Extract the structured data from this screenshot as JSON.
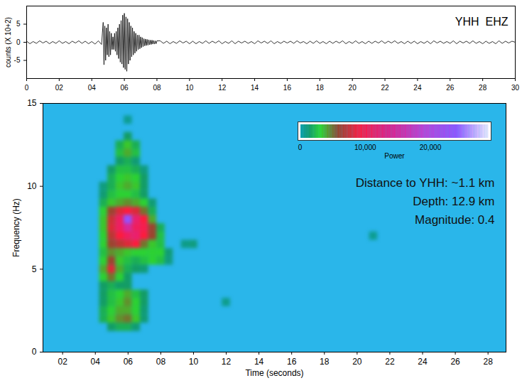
{
  "chart_data": [
    {
      "type": "line",
      "ylabel": "counts (X 10+2)",
      "annotation": "YHH  EHZ",
      "color": "#000000",
      "xlim": [
        0,
        30
      ],
      "xticks": [
        0,
        {
          "value": 2,
          "label": "02"
        },
        {
          "value": 4,
          "label": "04"
        },
        {
          "value": 6,
          "label": "06"
        },
        {
          "value": 8,
          "label": "08"
        },
        10,
        12,
        14,
        16,
        18,
        20,
        22,
        24,
        26,
        28,
        30
      ],
      "ylim": [
        -10,
        10
      ],
      "yticks": [
        -5,
        0,
        5
      ],
      "x": [
        0,
        0.2,
        0.4,
        0.6,
        0.8,
        1,
        1.2,
        1.4,
        1.6,
        1.8,
        2,
        2.2,
        2.4,
        2.6,
        2.8,
        3,
        3.2,
        3.4,
        3.6,
        3.8,
        4,
        4.2,
        4.4,
        4.6,
        4.65,
        4.7,
        4.75,
        4.8,
        4.85,
        4.9,
        4.95,
        5,
        5.05,
        5.1,
        5.15,
        5.2,
        5.25,
        5.3,
        5.35,
        5.4,
        5.45,
        5.5,
        5.55,
        5.6,
        5.65,
        5.7,
        5.75,
        5.8,
        5.85,
        5.9,
        5.95,
        6,
        6.05,
        6.1,
        6.15,
        6.2,
        6.25,
        6.3,
        6.35,
        6.4,
        6.45,
        6.5,
        6.55,
        6.6,
        6.65,
        6.7,
        6.75,
        6.8,
        6.85,
        6.9,
        6.95,
        7,
        7.05,
        7.1,
        7.15,
        7.2,
        7.25,
        7.3,
        7.35,
        7.4,
        7.45,
        7.5,
        7.55,
        7.6,
        7.65,
        7.7,
        7.75,
        7.8,
        7.85,
        7.9,
        7.95,
        8,
        8.2,
        8.4,
        8.6,
        8.8,
        9,
        9.2,
        9.4,
        9.6,
        9.8,
        10,
        10.2,
        10.4,
        10.6,
        10.8,
        11,
        11.2,
        11.4,
        11.6,
        11.8,
        12,
        12.2,
        12.4,
        12.6,
        12.8,
        13,
        13.2,
        13.4,
        13.6,
        13.8,
        14,
        14.2,
        14.4,
        14.6,
        14.8,
        15,
        15.2,
        15.4,
        15.6,
        15.8,
        16,
        16.2,
        16.4,
        16.6,
        16.8,
        17,
        17.2,
        17.4,
        17.6,
        17.8,
        18,
        18.2,
        18.4,
        18.6,
        18.8,
        19,
        19.2,
        19.4,
        19.6,
        19.8,
        20,
        20.2,
        20.4,
        20.6,
        20.8,
        21,
        21.2,
        21.4,
        21.6,
        21.8,
        22,
        22.2,
        22.4,
        22.6,
        22.8,
        23,
        23.2,
        23.4,
        23.6,
        23.8,
        24,
        24.2,
        24.4,
        24.6,
        24.8,
        25,
        25.2,
        25.4,
        25.6,
        25.8,
        26,
        26.2,
        26.4,
        26.6,
        26.8,
        27,
        27.2,
        27.4,
        27.6,
        27.8,
        28,
        28.2,
        28.4,
        28.6,
        28.8,
        29,
        29.2,
        29.4,
        29.6,
        29.8,
        30
      ],
      "values": [
        0.3,
        -0.4,
        0.2,
        -0.3,
        0.4,
        -0.2,
        0.3,
        -0.4,
        0.2,
        -0.3,
        0.4,
        -0.3,
        0.2,
        -0.4,
        0.3,
        -0.2,
        0.4,
        -0.3,
        0.3,
        -0.4,
        0.2,
        -0.5,
        0.4,
        -0.6,
        2.5,
        5.5,
        -6.2,
        4.5,
        -5,
        4,
        -3.5,
        5,
        -4,
        3,
        -3.5,
        2.5,
        -2,
        1.5,
        -2,
        2.5,
        -2.5,
        3,
        -3.5,
        4,
        -4.5,
        5,
        -5.5,
        6,
        -6,
        7.5,
        -7,
        8,
        -7.5,
        7,
        -8,
        6.5,
        -6,
        5.5,
        -5,
        4.5,
        -4,
        4,
        -3.5,
        3,
        -3,
        2.5,
        -2.5,
        2,
        -2,
        2,
        -1.8,
        1.5,
        -1.5,
        1.3,
        -1.2,
        1,
        -1,
        0.9,
        -0.9,
        0.8,
        -0.8,
        0.7,
        -0.7,
        0.6,
        -0.6,
        0.6,
        -0.5,
        0.5,
        -0.5,
        0.4,
        -0.4,
        0.4,
        0.4,
        -0.3,
        0.3,
        -0.4,
        0.2,
        -0.3,
        0.4,
        -0.2,
        0.3,
        -0.4,
        0.3,
        -0.4,
        0.2,
        -0.3,
        0.4,
        -0.3,
        0.3,
        -0.2,
        0.4,
        -0.4,
        0.2,
        -0.3,
        0.4,
        -0.4,
        0.3,
        -0.2,
        0.3,
        -0.3,
        0.2,
        -0.4,
        0.4,
        -0.2,
        0.3,
        -0.3,
        0.4,
        -0.4,
        0.2,
        -0.3,
        0.3,
        -0.2,
        0.3,
        -0.3,
        0.4,
        -0.2,
        0.2,
        -0.4,
        0.3,
        -0.3,
        0.4,
        -0.3,
        0.2,
        -0.4,
        0.3,
        -0.3,
        0.3,
        -0.2,
        0.4,
        -0.4,
        0.2,
        -0.3,
        0.4,
        -0.3,
        0.2,
        -0.4,
        0.3,
        -0.3,
        0.3,
        -0.2,
        0.4,
        -0.3,
        0.3,
        -0.2,
        0.4,
        -0.3,
        0.2,
        -0.4,
        0.3,
        -0.3,
        0.3,
        -0.4,
        0.2,
        -0.3,
        0.3,
        -0.4,
        0.4,
        -0.2,
        0.3,
        -0.3,
        0.2,
        -0.3,
        0.4,
        -0.4,
        0.3,
        -0.2,
        0.3,
        -0.3,
        0.4,
        -0.3,
        0.2,
        -0.4,
        0.3,
        -0.3,
        0.2,
        -0.4,
        0.4,
        -0.3,
        0.3,
        -0.2,
        0.3,
        0
      ]
    },
    {
      "type": "heatmap",
      "xlabel": "Time (seconds)",
      "ylabel": "Frequency (Hz)",
      "xlim": [
        0.8,
        29.1
      ],
      "xticks": [
        {
          "value": 2,
          "label": "02"
        },
        {
          "value": 4,
          "label": "04"
        },
        {
          "value": 6,
          "label": "06"
        },
        {
          "value": 8,
          "label": "08"
        },
        10,
        12,
        14,
        16,
        18,
        20,
        22,
        24,
        26,
        28
      ],
      "ylim": [
        0,
        15
      ],
      "yticks": [
        0,
        5,
        10,
        15
      ],
      "annotations": [
        "Distance to YHH: ~1.1 km",
        "Depth: 12.9 km",
        "Magnitude: 0.4"
      ],
      "colorbar": {
        "label": "Power",
        "range": [
          0,
          29000
        ],
        "ticks": [
          0,
          {
            "value": 10000,
            "label": "10,000"
          },
          {
            "value": 20000,
            "label": "20,000"
          }
        ]
      },
      "time_step": 0.5,
      "frequency_step": 0.5,
      "cells": [
        [
          6,
          14,
          600
        ],
        [
          6,
          13,
          1500
        ],
        [
          5.5,
          12.5,
          2000
        ],
        [
          6,
          12.5,
          3500
        ],
        [
          6.5,
          12.5,
          2000
        ],
        [
          5.5,
          12,
          2500
        ],
        [
          6,
          12,
          4000
        ],
        [
          6.5,
          12,
          2500
        ],
        [
          5.5,
          11.5,
          1500
        ],
        [
          6,
          11.5,
          2000
        ],
        [
          6.5,
          11.5,
          1200
        ],
        [
          5,
          11,
          1500
        ],
        [
          5.5,
          11,
          2500
        ],
        [
          6,
          11,
          2500
        ],
        [
          6.5,
          11,
          2000
        ],
        [
          7,
          11,
          1000
        ],
        [
          5,
          10.5,
          2000
        ],
        [
          5.5,
          10.5,
          3000
        ],
        [
          6,
          10.5,
          3500
        ],
        [
          6.5,
          10.5,
          3000
        ],
        [
          7,
          10.5,
          1500
        ],
        [
          4.5,
          10,
          1000
        ],
        [
          5,
          10,
          2000
        ],
        [
          5.5,
          10,
          3500
        ],
        [
          6,
          10,
          4000
        ],
        [
          6.5,
          10,
          3500
        ],
        [
          7,
          10,
          1500
        ],
        [
          4.5,
          9.5,
          1200
        ],
        [
          5,
          9.5,
          2500
        ],
        [
          5.5,
          9.5,
          3000
        ],
        [
          6,
          9.5,
          3000
        ],
        [
          6.5,
          9.5,
          2500
        ],
        [
          7,
          9.5,
          1500
        ],
        [
          4.5,
          9,
          2000
        ],
        [
          5,
          9,
          3500
        ],
        [
          5.5,
          9,
          4000
        ],
        [
          6,
          9,
          4500
        ],
        [
          6.5,
          9,
          4000
        ],
        [
          7,
          9,
          3000
        ],
        [
          7.5,
          9,
          1200
        ],
        [
          4.5,
          8.5,
          3000
        ],
        [
          5,
          8.5,
          6000
        ],
        [
          5.5,
          8.5,
          8000
        ],
        [
          6,
          8.5,
          9000
        ],
        [
          6.5,
          8.5,
          8000
        ],
        [
          7,
          8.5,
          5000
        ],
        [
          7.5,
          8.5,
          2000
        ],
        [
          4.5,
          8,
          3500
        ],
        [
          5,
          8,
          7500
        ],
        [
          5.5,
          8,
          11000
        ],
        [
          6,
          8,
          24000
        ],
        [
          6.5,
          8,
          12000
        ],
        [
          7,
          8,
          9000
        ],
        [
          7.5,
          8,
          4000
        ],
        [
          4.5,
          7.5,
          3500
        ],
        [
          5,
          7.5,
          8000
        ],
        [
          5.5,
          7.5,
          11000
        ],
        [
          6,
          7.5,
          15000
        ],
        [
          6.5,
          7.5,
          11000
        ],
        [
          7,
          7.5,
          10000
        ],
        [
          7.5,
          7.5,
          6000
        ],
        [
          8,
          7.5,
          2000
        ],
        [
          4.5,
          7,
          3000
        ],
        [
          5,
          7,
          7000
        ],
        [
          5.5,
          7,
          9000
        ],
        [
          6,
          7,
          11000
        ],
        [
          6.5,
          7,
          12000
        ],
        [
          7,
          7,
          9000
        ],
        [
          7.5,
          7,
          6000
        ],
        [
          8,
          7,
          2500
        ],
        [
          4.5,
          6.5,
          3000
        ],
        [
          5,
          6.5,
          6000
        ],
        [
          5.5,
          6.5,
          7000
        ],
        [
          6,
          6.5,
          8000
        ],
        [
          6.5,
          6.5,
          9000
        ],
        [
          7,
          6.5,
          5000
        ],
        [
          7.5,
          6.5,
          3500
        ],
        [
          8,
          6.5,
          2500
        ],
        [
          4.5,
          6,
          2500
        ],
        [
          5,
          6,
          4500
        ],
        [
          5.5,
          6,
          4000
        ],
        [
          6,
          6,
          3500
        ],
        [
          6.5,
          6,
          3000
        ],
        [
          7,
          6,
          3000
        ],
        [
          7.5,
          6,
          3000
        ],
        [
          8,
          6,
          3000
        ],
        [
          8.5,
          6,
          1200
        ],
        [
          4.5,
          5.5,
          3000
        ],
        [
          5,
          5.5,
          6000
        ],
        [
          5.5,
          5.5,
          3500
        ],
        [
          6,
          5.5,
          2500
        ],
        [
          6.5,
          5.5,
          2000
        ],
        [
          7,
          5.5,
          2500
        ],
        [
          7.5,
          5.5,
          3000
        ],
        [
          8,
          5.5,
          2500
        ],
        [
          8.5,
          5.5,
          1000
        ],
        [
          4.5,
          5,
          4000
        ],
        [
          5,
          5,
          8000
        ],
        [
          5.5,
          5,
          4000
        ],
        [
          6,
          5,
          2000
        ],
        [
          6.5,
          5,
          1500
        ],
        [
          7,
          5,
          1200
        ],
        [
          4.5,
          4.5,
          3000
        ],
        [
          5,
          4.5,
          5000
        ],
        [
          5.5,
          4.5,
          3000
        ],
        [
          6,
          4.5,
          1500
        ],
        [
          4.5,
          4,
          1500
        ],
        [
          5,
          4,
          2000
        ],
        [
          5.5,
          4,
          1500
        ],
        [
          6,
          4,
          1500
        ],
        [
          4.5,
          3.5,
          1500
        ],
        [
          5,
          3.5,
          2500
        ],
        [
          5.5,
          3.5,
          3000
        ],
        [
          6,
          3.5,
          4000
        ],
        [
          6.5,
          3.5,
          2500
        ],
        [
          7,
          3.5,
          1500
        ],
        [
          4.5,
          3,
          1500
        ],
        [
          5,
          3,
          2500
        ],
        [
          5.5,
          3,
          3500
        ],
        [
          6,
          3,
          4500
        ],
        [
          6.5,
          3,
          3000
        ],
        [
          7,
          3,
          1500
        ],
        [
          4.5,
          2.5,
          2000
        ],
        [
          5,
          2.5,
          3000
        ],
        [
          5.5,
          2.5,
          4000
        ],
        [
          6,
          2.5,
          4000
        ],
        [
          6.5,
          2.5,
          3000
        ],
        [
          7,
          2.5,
          1200
        ],
        [
          4.5,
          2,
          2000
        ],
        [
          5,
          2,
          3500
        ],
        [
          5.5,
          2,
          4500
        ],
        [
          6,
          2,
          5000
        ],
        [
          6.5,
          2,
          3500
        ],
        [
          7,
          2,
          1200
        ],
        [
          5,
          1.5,
          1500
        ],
        [
          5.5,
          1.5,
          2000
        ],
        [
          6,
          1.5,
          2000
        ],
        [
          6.5,
          1.5,
          1200
        ],
        [
          9.5,
          6.5,
          800
        ],
        [
          10,
          6.5,
          1000
        ],
        [
          12,
          3,
          700
        ],
        [
          21,
          7,
          600
        ]
      ]
    }
  ]
}
